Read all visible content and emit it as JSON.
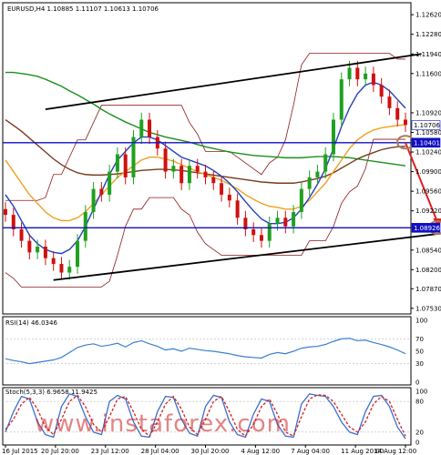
{
  "chart_data": {
    "type": "candlestick",
    "symbol_header": "EURUSD,H4  1.10885 1.11107 1.10613 1.10706",
    "price_axis": {
      "ticks": [
        "1.12620",
        "1.12280",
        "1.11940",
        "1.11600",
        "1.10920",
        "1.10580",
        "1.10240",
        "1.09900",
        "1.09560",
        "1.09220",
        "1.08540",
        "1.08200",
        "1.07870",
        "1.07530"
      ],
      "ylim": [
        1.0748,
        1.1278
      ]
    },
    "price_markers": [
      {
        "label": "1.10706",
        "value": 1.10706,
        "color": "#ffffff",
        "text_color": "#000000"
      },
      {
        "label": "1.10401",
        "value": 1.10401,
        "color": "#1010c0",
        "text_color": "#ffffff"
      },
      {
        "label": "1.08926",
        "value": 1.08926,
        "color": "#1010c0",
        "text_color": "#ffffff"
      }
    ],
    "time_axis": [
      "16 Jul 2015",
      "20 Jul 20:00",
      "23 Jul 12:00",
      "28 Jul 04:00",
      "30 Jul 20:00",
      "4 Aug 12:00",
      "7 Aug 04:00",
      "11 Aug 20:00",
      "14 Aug 12:00"
    ],
    "horizontal_levels": [
      1.10401,
      1.08926
    ],
    "channel_lines": [
      {
        "name": "upper",
        "from": [
          5,
          1.1098
        ],
        "to": [
          52,
          1.1194
        ]
      },
      {
        "name": "lower",
        "from": [
          6,
          1.0802
        ],
        "to": [
          60,
          1.0892
        ]
      }
    ],
    "forecast_arrow": {
      "from": [
        50,
        1.104
      ],
      "to": [
        54,
        1.0893
      ]
    },
    "circles": [
      {
        "at": [
          50,
          1.1041
        ]
      },
      {
        "at": [
          54,
          1.0893
        ]
      }
    ],
    "candles_close": [
      1.0915,
      1.089,
      1.087,
      1.085,
      1.086,
      1.084,
      1.083,
      1.0815,
      1.0825,
      1.087,
      1.092,
      1.096,
      1.095,
      1.099,
      1.102,
      1.098,
      1.105,
      1.108,
      1.105,
      1.103,
      1.099,
      1.1,
      1.097,
      1.1,
      1.099,
      1.098,
      1.097,
      1.095,
      1.094,
      1.091,
      1.089,
      1.088,
      1.087,
      1.09,
      1.091,
      1.0895,
      1.092,
      1.096,
      1.098,
      1.099,
      1.102,
      1.108,
      1.115,
      1.117,
      1.115,
      1.116,
      1.114,
      1.112,
      1.11,
      1.108,
      1.1071
    ],
    "ma_series": [
      {
        "name": "",
        "color": "#1a8f1a",
        "values": [
          1.1162,
          1.1162,
          1.116,
          1.1158,
          1.1155,
          1.115,
          1.1144,
          1.1138,
          1.113,
          1.1123,
          1.1115,
          1.1107,
          1.1098,
          1.109,
          1.1083,
          1.1076,
          1.107,
          1.1064,
          1.1058,
          1.1054,
          1.105,
          1.1047,
          1.1044,
          1.1041,
          1.1037,
          1.1033,
          1.103,
          1.1027,
          1.1024,
          1.1022,
          1.102,
          1.1018,
          1.1017,
          1.1016,
          1.1015,
          1.1014,
          1.1014,
          1.1014,
          1.1015,
          1.1016,
          1.1016,
          1.1016,
          1.1015,
          1.1014,
          1.1012,
          1.101,
          1.1008,
          1.1006,
          1.1004,
          1.1002,
          1.1
        ]
      },
      {
        "name": "",
        "color": "#7a3b1e",
        "values": [
          1.108,
          1.107,
          1.106,
          1.1048,
          1.1036,
          1.1024,
          1.1012,
          1.1002,
          1.0994,
          1.0988,
          1.0985,
          1.0984,
          1.0984,
          1.0985,
          1.0986,
          1.0988,
          1.099,
          1.0992,
          1.0993,
          1.0994,
          1.0994,
          1.0993,
          1.0992,
          1.099,
          1.0988,
          1.0986,
          1.0984,
          1.0982,
          1.098,
          1.0978,
          1.0976,
          1.0974,
          1.0972,
          1.0971,
          1.097,
          1.097,
          1.097,
          1.0972,
          1.0975,
          1.0978,
          1.0982,
          1.0988,
          1.0996,
          1.1004,
          1.1012,
          1.1018,
          1.1023,
          1.1028,
          1.1031,
          1.1033,
          1.1034
        ]
      },
      {
        "name": "",
        "color": "#f0a020",
        "values": [
          1.101,
          1.099,
          1.097,
          1.095,
          1.0935,
          1.092,
          1.091,
          1.0905,
          1.0905,
          1.091,
          1.092,
          1.0935,
          1.095,
          1.0965,
          1.098,
          1.099,
          1.1,
          1.101,
          1.1015,
          1.1015,
          1.1012,
          1.1008,
          1.1002,
          1.0996,
          1.099,
          1.0985,
          1.098,
          1.0975,
          1.0968,
          1.096,
          1.095,
          1.0942,
          1.0935,
          1.093,
          1.0928,
          1.0925,
          1.0925,
          1.093,
          1.094,
          1.0955,
          1.097,
          1.099,
          1.101,
          1.103,
          1.1045,
          1.1055,
          1.1062,
          1.1066,
          1.1068,
          1.107,
          1.1071
        ]
      },
      {
        "name": "",
        "color": "#2040c0",
        "values": [
          1.095,
          1.093,
          1.0905,
          1.088,
          1.0865,
          1.0855,
          1.085,
          1.0848,
          1.0855,
          1.087,
          1.0895,
          1.0925,
          1.0955,
          1.0985,
          1.101,
          1.1025,
          1.104,
          1.105,
          1.105,
          1.1045,
          1.1035,
          1.1025,
          1.1015,
          1.101,
          1.1005,
          1.1,
          1.0992,
          1.0982,
          1.097,
          1.0955,
          1.0938,
          1.0922,
          1.0908,
          1.09,
          1.09,
          1.0902,
          1.091,
          1.0925,
          1.0945,
          1.0968,
          1.0995,
          1.103,
          1.1068,
          1.11,
          1.1125,
          1.114,
          1.1145,
          1.114,
          1.113,
          1.1115,
          1.11
        ]
      }
    ],
    "rsi": {
      "label": "RSI(14) 46.0346",
      "ticks": [
        "100",
        "70",
        "50",
        "30",
        "0"
      ],
      "ylim": [
        0,
        100
      ],
      "values": [
        38,
        35,
        33,
        30,
        32,
        34,
        36,
        40,
        48,
        56,
        60,
        62,
        58,
        60,
        63,
        57,
        64,
        67,
        62,
        58,
        52,
        54,
        50,
        55,
        53,
        51,
        50,
        48,
        46,
        43,
        41,
        40,
        39,
        45,
        48,
        46,
        50,
        55,
        57,
        58,
        61,
        66,
        70,
        71,
        67,
        68,
        64,
        61,
        57,
        52,
        46
      ]
    },
    "stochastic": {
      "label": "Stoch(5,3,3) 6.9658 11.9425",
      "ticks": [
        "100",
        "80",
        "20",
        "0"
      ],
      "ylim": [
        0,
        100
      ],
      "main": [
        20,
        60,
        90,
        85,
        40,
        15,
        10,
        70,
        95,
        90,
        50,
        20,
        15,
        80,
        92,
        85,
        40,
        12,
        10,
        60,
        90,
        88,
        45,
        18,
        12,
        70,
        92,
        88,
        40,
        15,
        10,
        55,
        85,
        80,
        35,
        12,
        10,
        75,
        95,
        92,
        90,
        70,
        40,
        20,
        15,
        60,
        90,
        92,
        70,
        30,
        7
      ],
      "signal": [
        25,
        45,
        75,
        88,
        65,
        30,
        15,
        45,
        80,
        92,
        70,
        35,
        20,
        50,
        85,
        90,
        60,
        25,
        12,
        40,
        75,
        90,
        65,
        30,
        15,
        45,
        80,
        90,
        60,
        25,
        12,
        35,
        70,
        85,
        55,
        20,
        12,
        50,
        85,
        93,
        92,
        80,
        55,
        30,
        20,
        40,
        75,
        90,
        80,
        45,
        12
      ]
    },
    "watermark": "www.instaforex.com"
  }
}
